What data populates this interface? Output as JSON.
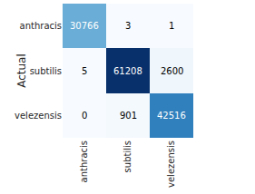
{
  "chart_data": {
    "type": "heatmap",
    "ylabel": "Actual",
    "x_categories": [
      "anthracis",
      "subtilis",
      "velezensis"
    ],
    "y_categories": [
      "anthracis",
      "subtilis",
      "velezensis"
    ],
    "cells": [
      [
        30766,
        3,
        1
      ],
      [
        5,
        61208,
        2600
      ],
      [
        0,
        901,
        42516
      ]
    ],
    "data_labels": true
  }
}
